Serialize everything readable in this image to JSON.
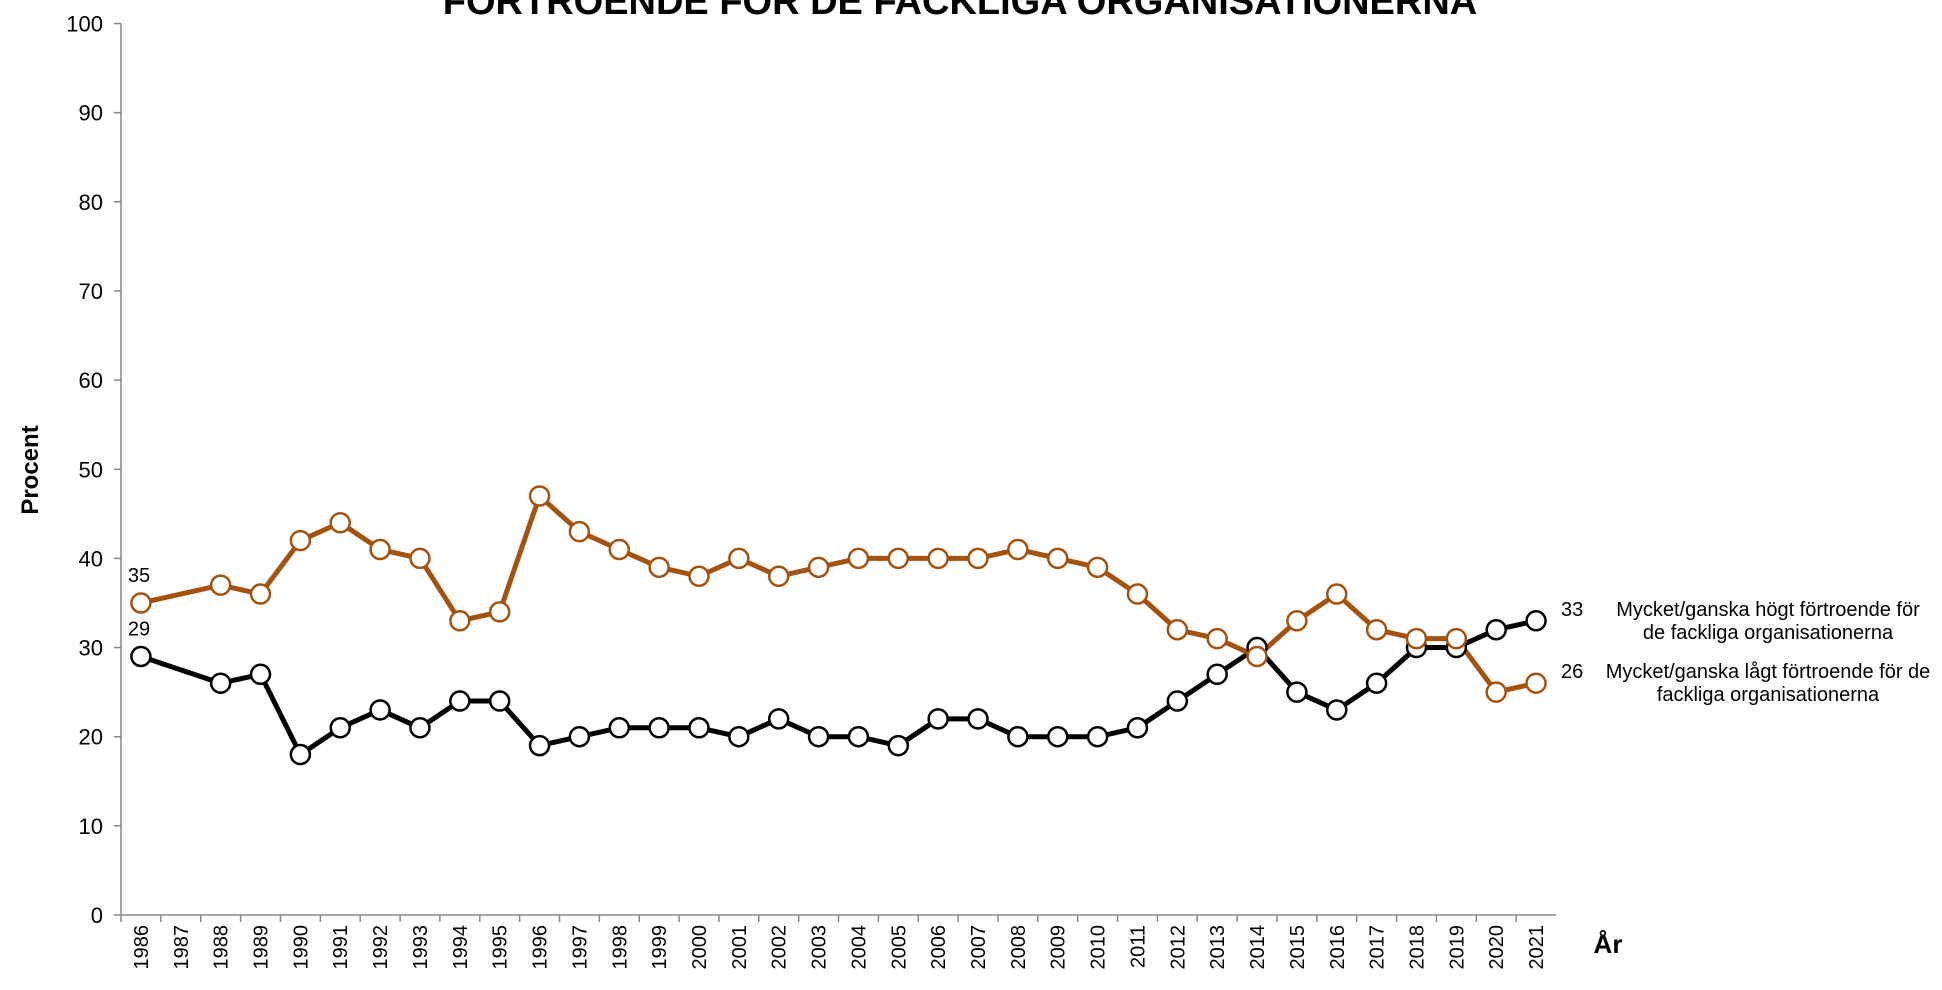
{
  "chart_data": {
    "type": "line",
    "title": "FÖRTROENDE FÖR DE FACKLIGA ORGANISATIONERNA",
    "y_label": "Procent",
    "x_label": "År",
    "xlim": [
      1985.5,
      2021.5
    ],
    "xticks": [
      1986,
      1987,
      1988,
      1989,
      1990,
      1991,
      1992,
      1993,
      1994,
      1995,
      1996,
      1997,
      1998,
      1999,
      2000,
      2001,
      2002,
      2003,
      2004,
      2005,
      2006,
      2007,
      2008,
      2009,
      2010,
      2011,
      2012,
      2013,
      2014,
      2015,
      2016,
      2017,
      2018,
      2019,
      2020,
      2021
    ],
    "ylim": [
      0,
      100
    ],
    "yticks": [
      0,
      10,
      20,
      30,
      40,
      50,
      60,
      70,
      80,
      90,
      100
    ],
    "grid": false,
    "series": [
      {
        "name": "Mycket/ganska högt förtroende för de fackliga organisationerna",
        "color": "#000000",
        "x": [
          1986,
          1988,
          1989,
          1990,
          1991,
          1992,
          1993,
          1994,
          1995,
          1996,
          1997,
          1998,
          1999,
          2000,
          2001,
          2002,
          2003,
          2004,
          2005,
          2006,
          2007,
          2008,
          2009,
          2010,
          2011,
          2012,
          2013,
          2014,
          2015,
          2016,
          2017,
          2018,
          2019,
          2020,
          2021
        ],
        "values": [
          29,
          26,
          27,
          18,
          21,
          23,
          21,
          24,
          24,
          19,
          20,
          21,
          21,
          21,
          20,
          22,
          20,
          20,
          19,
          22,
          22,
          20,
          20,
          20,
          21,
          24,
          27,
          30,
          25,
          23,
          26,
          30,
          30,
          32,
          33
        ]
      },
      {
        "name": "Mycket/ganska lågt förtroende för de fackliga organisationerna",
        "color": "#a5520f",
        "x": [
          1986,
          1988,
          1989,
          1990,
          1991,
          1992,
          1993,
          1994,
          1995,
          1996,
          1997,
          1998,
          1999,
          2000,
          2001,
          2002,
          2003,
          2004,
          2005,
          2006,
          2007,
          2008,
          2009,
          2010,
          2011,
          2012,
          2013,
          2014,
          2015,
          2016,
          2017,
          2018,
          2019,
          2020,
          2021
        ],
        "values": [
          35,
          37,
          36,
          42,
          44,
          41,
          40,
          33,
          34,
          47,
          43,
          41,
          39,
          38,
          40,
          38,
          39,
          40,
          40,
          40,
          40,
          41,
          40,
          39,
          36,
          32,
          31,
          29,
          33,
          36,
          32,
          31,
          31,
          25,
          26
        ]
      }
    ]
  }
}
